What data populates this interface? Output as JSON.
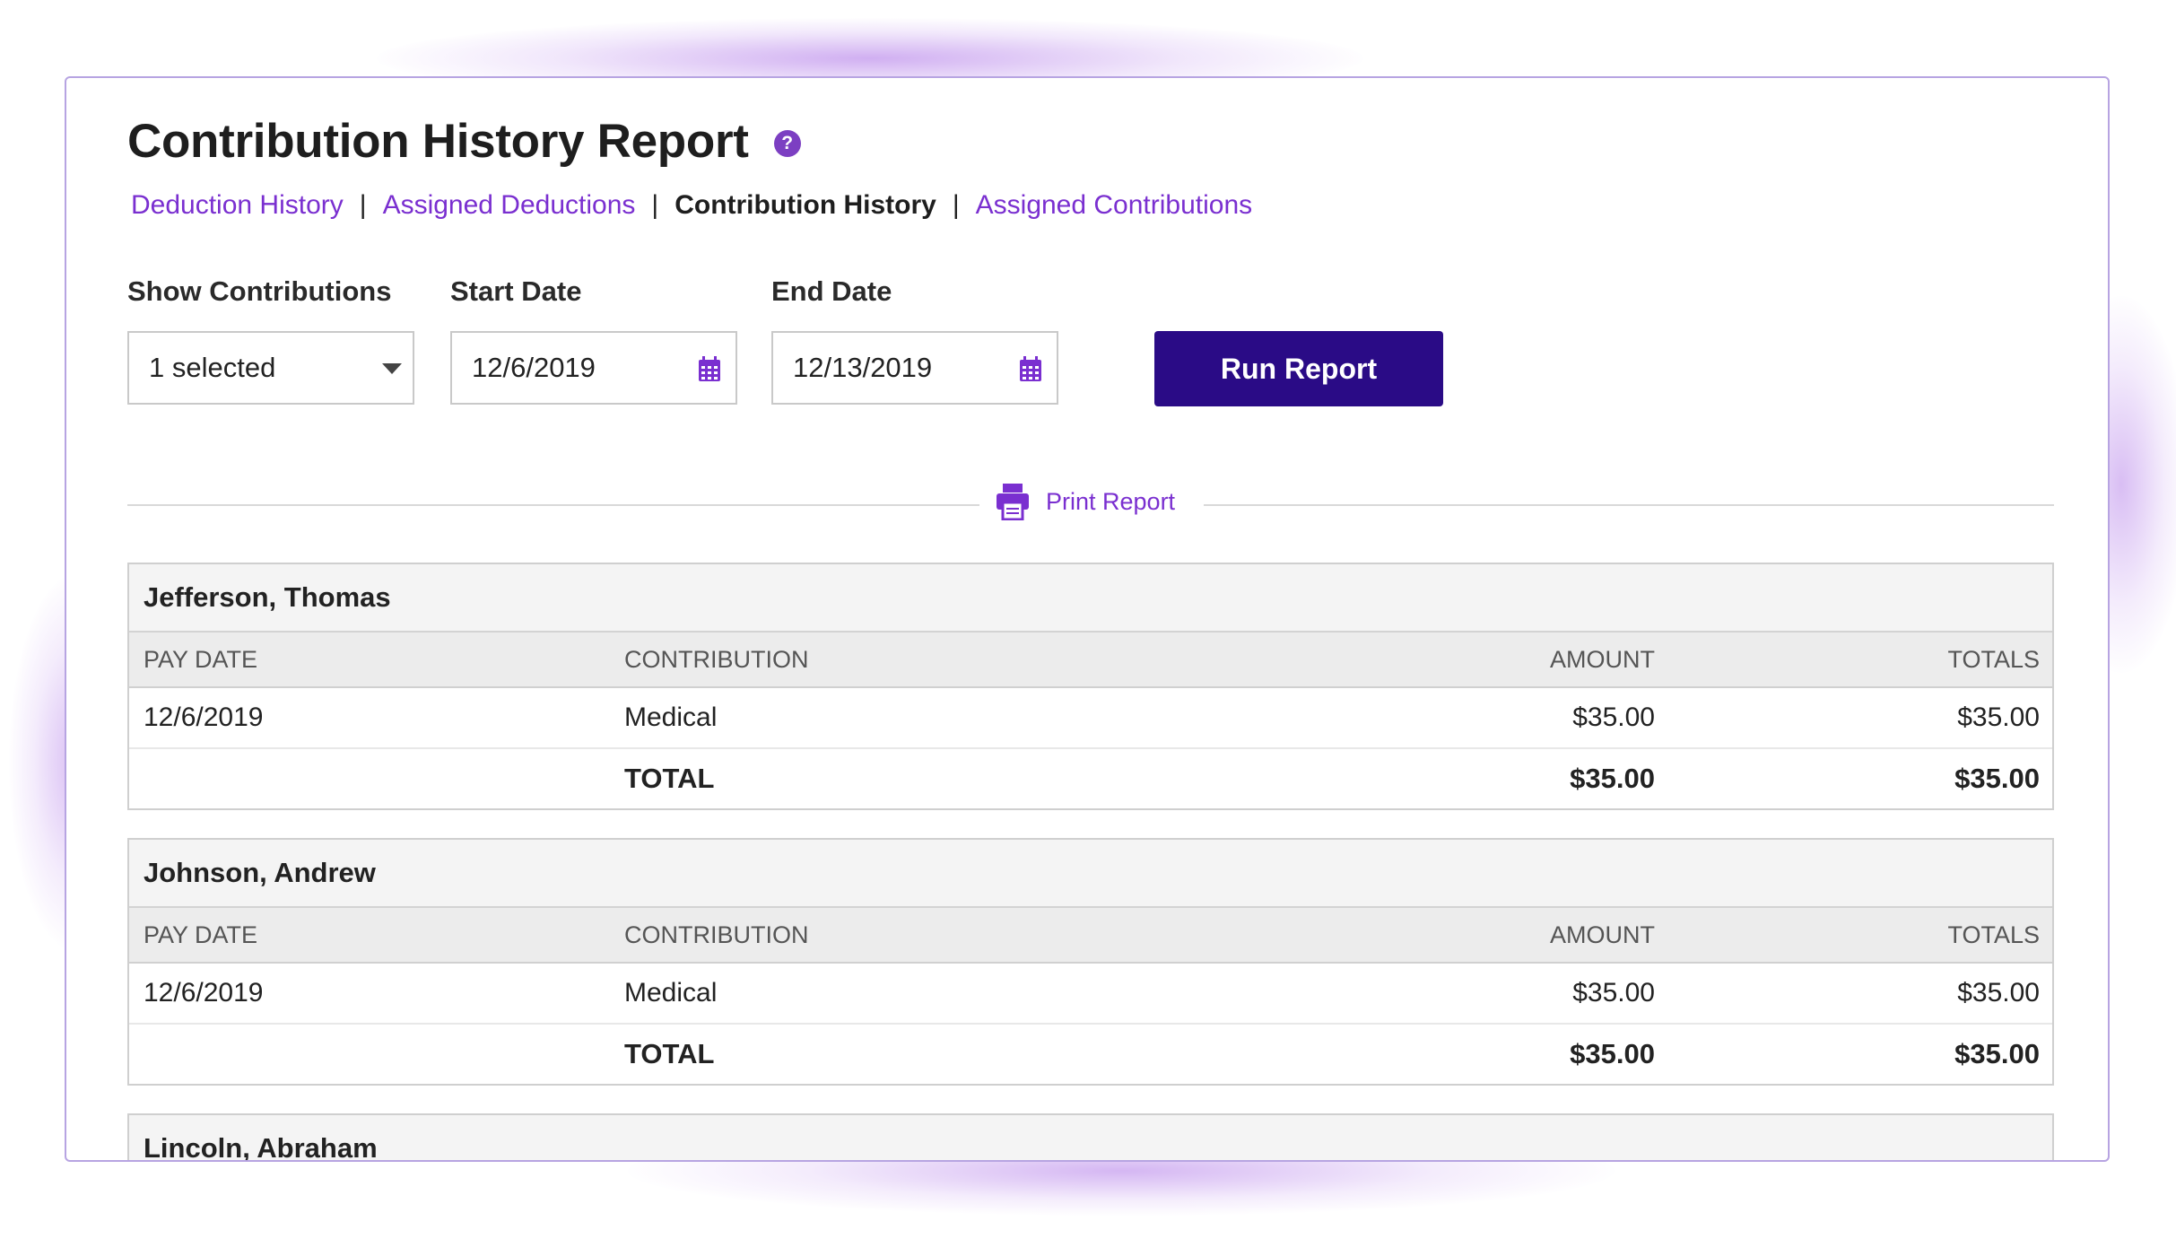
{
  "page": {
    "title": "Contribution History Report",
    "help_icon": "?"
  },
  "subnav": {
    "items": [
      {
        "label": "Deduction History",
        "active": false
      },
      {
        "label": "Assigned Deductions",
        "active": false
      },
      {
        "label": "Contribution History",
        "active": true
      },
      {
        "label": "Assigned Contributions",
        "active": false
      }
    ],
    "separator": "|"
  },
  "filters": {
    "show_contributions": {
      "label": "Show Contributions",
      "value": "1 selected"
    },
    "start_date": {
      "label": "Start Date",
      "value": "12/6/2019"
    },
    "end_date": {
      "label": "End Date",
      "value": "12/13/2019"
    },
    "run_button": "Run Report"
  },
  "print": {
    "label": "Print Report"
  },
  "columns": {
    "pay_date": "PAY DATE",
    "contribution": "CONTRIBUTION",
    "amount": "AMOUNT",
    "totals": "TOTALS"
  },
  "groups": [
    {
      "name": "Jefferson, Thomas",
      "rows": [
        {
          "pay_date": "12/6/2019",
          "contribution": "Medical",
          "amount": "$35.00",
          "totals": "$35.00"
        }
      ],
      "total": {
        "label": "TOTAL",
        "amount": "$35.00",
        "totals": "$35.00"
      }
    },
    {
      "name": "Johnson, Andrew",
      "rows": [
        {
          "pay_date": "12/6/2019",
          "contribution": "Medical",
          "amount": "$35.00",
          "totals": "$35.00"
        }
      ],
      "total": {
        "label": "TOTAL",
        "amount": "$35.00",
        "totals": "$35.00"
      }
    },
    {
      "name": "Lincoln, Abraham"
    }
  ],
  "colors": {
    "accent": "#7a2fd0",
    "button": "#2a0b86",
    "border": "#b7a4e2"
  },
  "icons": {
    "help": "question-circle-icon",
    "dropdown": "caret-down-icon",
    "calendar": "calendar-icon",
    "print": "printer-icon"
  }
}
